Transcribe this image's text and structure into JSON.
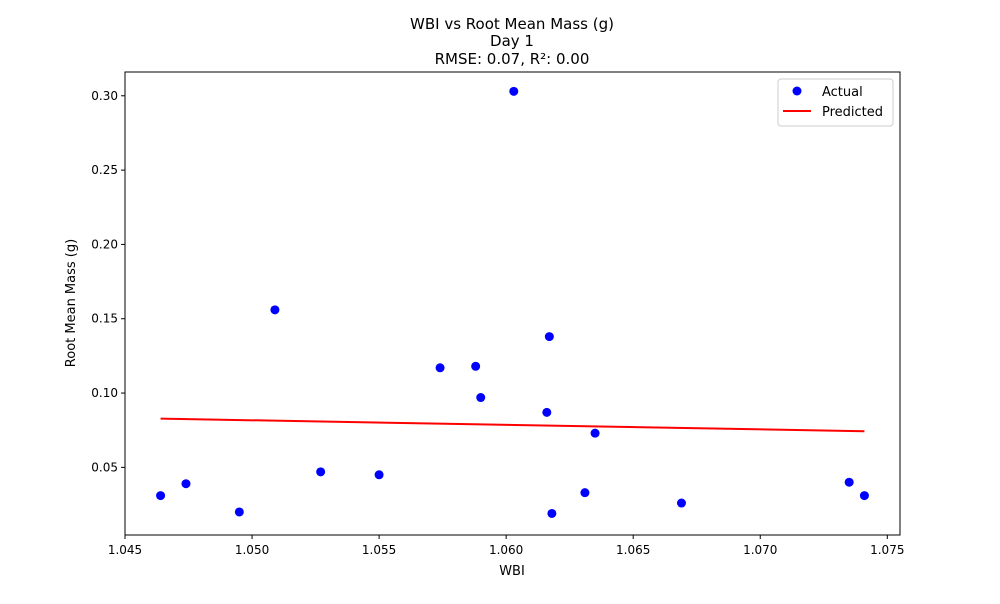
{
  "chart_data": {
    "type": "scatter",
    "title_lines": [
      "WBI vs Root Mean Mass (g)",
      "Day 1",
      "RMSE: 0.07, R²: 0.00"
    ],
    "xlabel": "WBI",
    "ylabel": "Root Mean Mass (g)",
    "xlim": [
      1.045,
      1.0755
    ],
    "ylim": [
      0.0045,
      0.316
    ],
    "xticks": [
      1.045,
      1.05,
      1.055,
      1.06,
      1.065,
      1.07,
      1.075
    ],
    "xtick_labels": [
      "1.045",
      "1.050",
      "1.055",
      "1.060",
      "1.065",
      "1.070",
      "1.075"
    ],
    "yticks": [
      0.05,
      0.1,
      0.15,
      0.2,
      0.25,
      0.3
    ],
    "ytick_labels": [
      "0.05",
      "0.10",
      "0.15",
      "0.20",
      "0.25",
      "0.30"
    ],
    "grid": false,
    "legend_position": "top-right",
    "series": [
      {
        "name": "Actual",
        "kind": "scatter",
        "color": "#0000ff",
        "points": [
          [
            1.0464,
            0.031
          ],
          [
            1.0474,
            0.039
          ],
          [
            1.0495,
            0.02
          ],
          [
            1.0509,
            0.156
          ],
          [
            1.0527,
            0.047
          ],
          [
            1.055,
            0.045
          ],
          [
            1.0574,
            0.117
          ],
          [
            1.0588,
            0.118
          ],
          [
            1.059,
            0.097
          ],
          [
            1.0603,
            0.303
          ],
          [
            1.0616,
            0.087
          ],
          [
            1.0617,
            0.138
          ],
          [
            1.0618,
            0.019
          ],
          [
            1.0631,
            0.033
          ],
          [
            1.0635,
            0.073
          ],
          [
            1.0669,
            0.026
          ],
          [
            1.0735,
            0.04
          ],
          [
            1.0741,
            0.031
          ]
        ]
      },
      {
        "name": "Predicted",
        "kind": "line",
        "color": "#ff0000",
        "points": [
          [
            1.0464,
            0.0828
          ],
          [
            1.0741,
            0.0743
          ]
        ]
      }
    ]
  }
}
